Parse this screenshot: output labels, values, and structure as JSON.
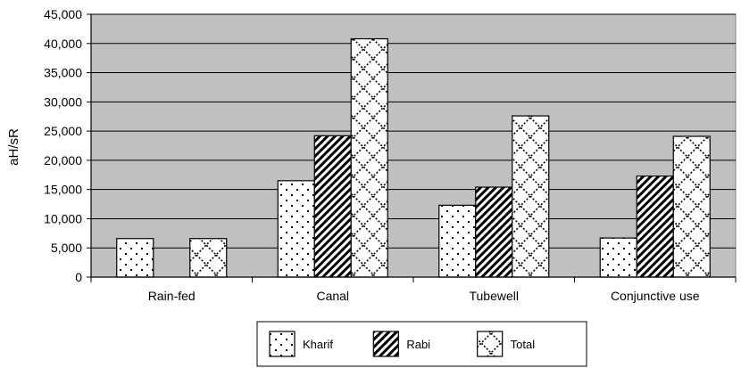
{
  "chart_data": {
    "type": "bar",
    "title": "",
    "xlabel": "",
    "ylabel": "aH/sR",
    "ylim": [
      0,
      45000
    ],
    "ytick_step": 5000,
    "y_tick_labels": [
      "0",
      "5,000",
      "10,000",
      "15,000",
      "20,000",
      "25,000",
      "30,000",
      "35,000",
      "40,000",
      "45,000"
    ],
    "categories": [
      "Rain-fed",
      "Canal",
      "Tubewell",
      "Conjunctive use"
    ],
    "series": [
      {
        "name": "Kharif",
        "pattern": "dots",
        "values": [
          6600,
          16500,
          12300,
          6700
        ]
      },
      {
        "name": "Rabi",
        "pattern": "diagonal-stripes",
        "values": [
          null,
          24200,
          15400,
          17300
        ]
      },
      {
        "name": "Total",
        "pattern": "zigzag-lattice",
        "values": [
          6600,
          40800,
          27600,
          24100
        ]
      }
    ],
    "grid": true,
    "plot_background": "#c0c0c0",
    "legend_position": "bottom"
  }
}
